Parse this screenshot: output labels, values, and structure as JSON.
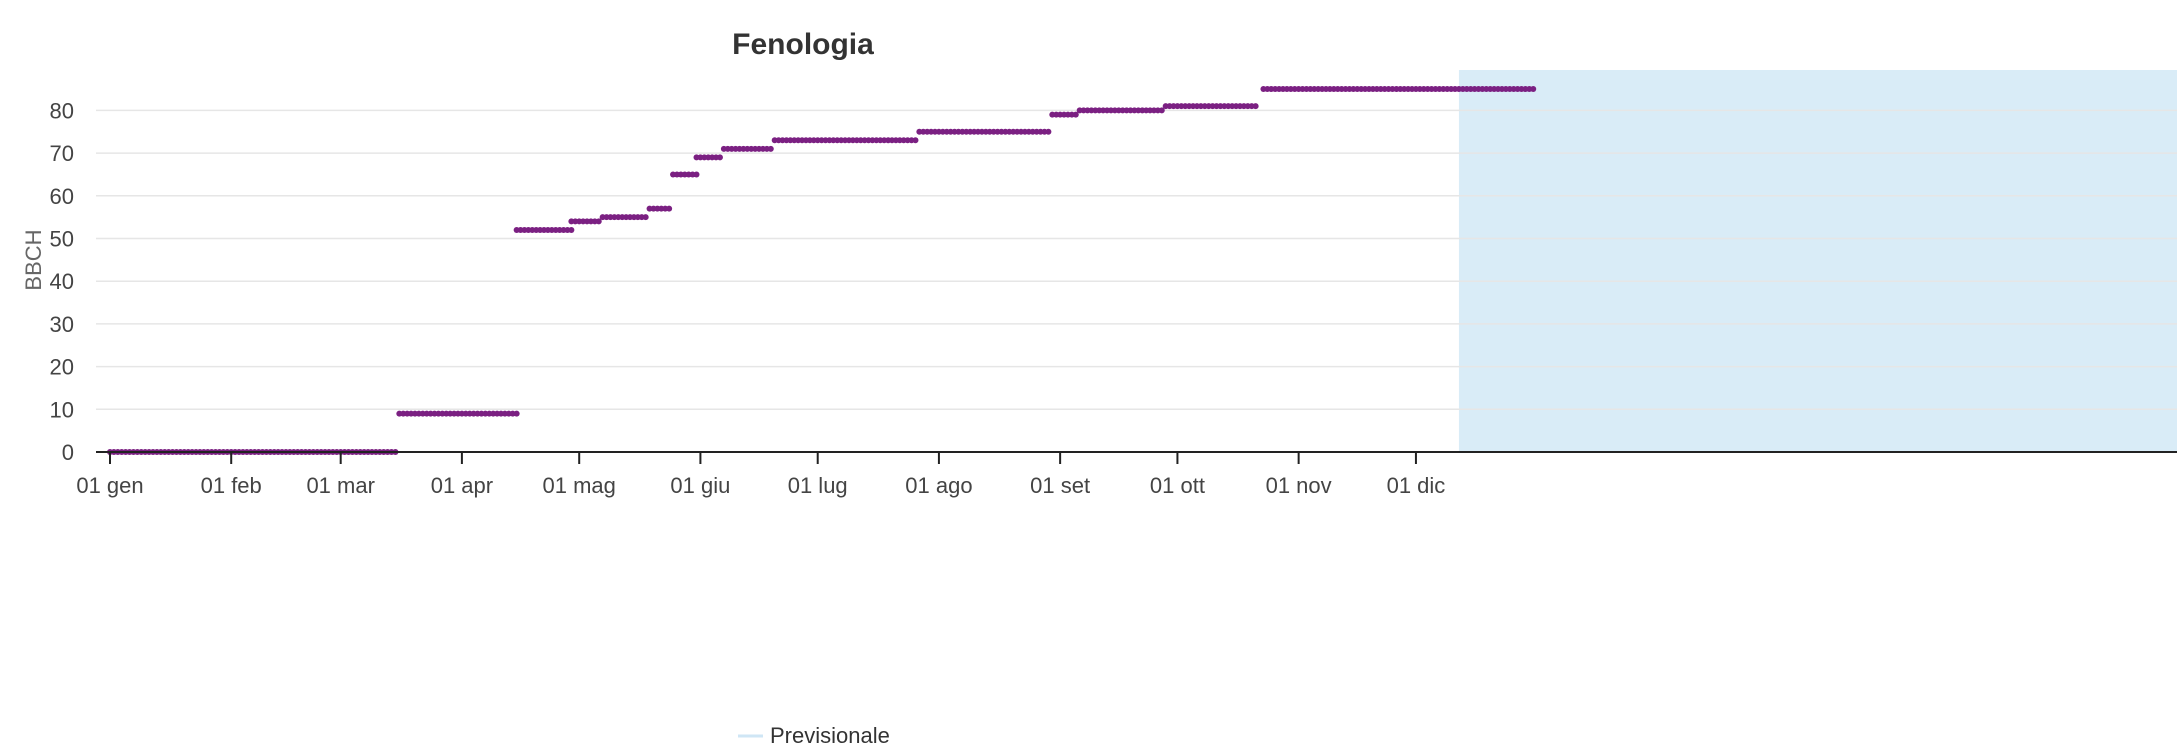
{
  "chart_data": {
    "type": "scatter",
    "title": "Fenologia",
    "ylabel": "BBCH",
    "xlabel": "",
    "ylim": [
      0,
      85
    ],
    "y_ticks": [
      0,
      10,
      20,
      30,
      40,
      50,
      60,
      70,
      80
    ],
    "x_tick_labels": [
      "01 gen",
      "01 feb",
      "01 mar",
      "01 apr",
      "01 mag",
      "01 giu",
      "01 lug",
      "01 ago",
      "01 set",
      "01 ott",
      "01 nov",
      "01 dic"
    ],
    "grid": true,
    "legend_position": "bottom-center",
    "colors": {
      "series": "#7b2082",
      "forecast_band": "#d9ecf7",
      "legend_line": "#cfe6f5"
    },
    "series": [
      {
        "points": [
          {
            "start": "01 gen",
            "end": "15 mar",
            "y": 0
          },
          {
            "start": "16 mar",
            "end": "15 apr",
            "y": 9
          },
          {
            "start": "15 apr",
            "end": "29 apr",
            "y": 52
          },
          {
            "start": "29 apr",
            "end": "06 mag",
            "y": 54
          },
          {
            "start": "07 mag",
            "end": "18 mag",
            "y": 55
          },
          {
            "start": "19 mag",
            "end": "24 mag",
            "y": 57
          },
          {
            "start": "25 mag",
            "end": "31 mag",
            "y": 65
          },
          {
            "start": "31 mag",
            "end": "06 giu",
            "y": 69
          },
          {
            "start": "07 giu",
            "end": "19 giu",
            "y": 71
          },
          {
            "start": "20 giu",
            "end": "26 lug",
            "y": 73
          },
          {
            "start": "27 lug",
            "end": "29 ago",
            "y": 75
          },
          {
            "start": "30 ago",
            "end": "05 set",
            "y": 79
          },
          {
            "start": "06 set",
            "end": "27 set",
            "y": 80
          },
          {
            "start": "28 set",
            "end": "21 ott",
            "y": 81
          },
          {
            "start": "23 ott",
            "end": "31 dic",
            "y": 85
          }
        ]
      }
    ],
    "forecast": {
      "label": "Previsionale",
      "start": "12 dic"
    }
  }
}
